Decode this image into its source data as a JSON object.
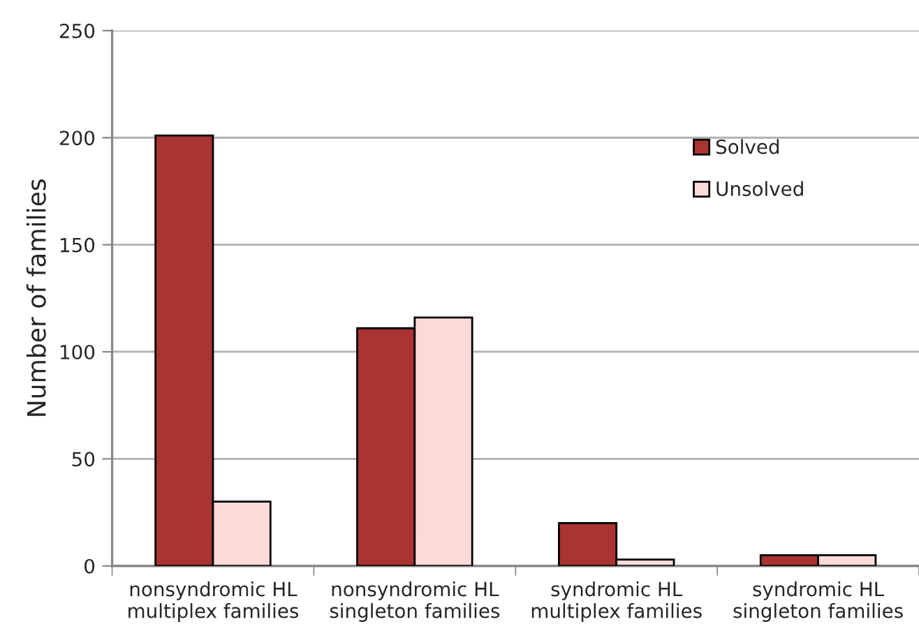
{
  "chart_data": {
    "type": "bar",
    "ylabel": "Number of families",
    "categories": [
      "nonsyndromic HL\nmultiplex families",
      "nonsyndromic HL\nsingleton families",
      "syndromic HL\nmultiplex families",
      "syndromic HL\nsingleton families"
    ],
    "series": [
      {
        "name": "Solved",
        "color": "#a93431",
        "values": [
          201,
          111,
          20,
          5
        ]
      },
      {
        "name": "Unsolved",
        "color": "#fadbda",
        "values": [
          30,
          116,
          3,
          5
        ]
      }
    ],
    "ylim": [
      0,
      250
    ],
    "yticks": [
      0,
      50,
      100,
      150,
      200,
      250
    ],
    "grid": "y",
    "legend": "top right"
  }
}
